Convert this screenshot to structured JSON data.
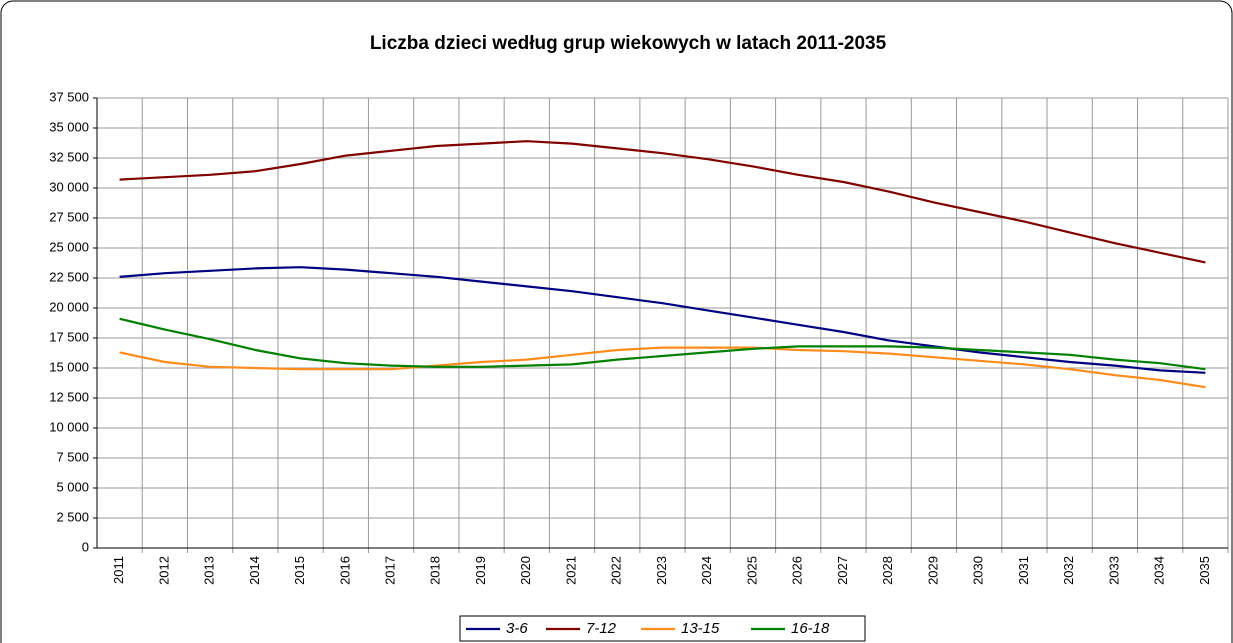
{
  "chart_data": {
    "type": "line",
    "title": "Liczba dzieci według grup wiekowych w latach 2011-2035",
    "categories": [
      "2011",
      "2012",
      "2013",
      "2014",
      "2015",
      "2016",
      "2017",
      "2018",
      "2019",
      "2020",
      "2021",
      "2022",
      "2023",
      "2024",
      "2025",
      "2026",
      "2027",
      "2028",
      "2029",
      "2030",
      "2031",
      "2032",
      "2033",
      "2034",
      "2035"
    ],
    "series": [
      {
        "name": "3-6",
        "color": "#000080",
        "values": [
          22600,
          22900,
          23100,
          23300,
          23400,
          23200,
          22900,
          22600,
          22200,
          21800,
          21400,
          20900,
          20400,
          19800,
          19200,
          18600,
          18000,
          17300,
          16800,
          16300,
          15900,
          15500,
          15200,
          14800,
          14600
        ]
      },
      {
        "name": "7-12",
        "color": "#800000",
        "values": [
          30700,
          30900,
          31100,
          31400,
          32000,
          32700,
          33100,
          33500,
          33700,
          33900,
          33700,
          33300,
          32900,
          32400,
          31800,
          31100,
          30500,
          29700,
          28800,
          28000,
          27200,
          26300,
          25400,
          24600,
          23800
        ]
      },
      {
        "name": "13-15",
        "color": "#ff8c1a",
        "values": [
          16300,
          15500,
          15100,
          15000,
          14900,
          14900,
          14900,
          15200,
          15500,
          15700,
          16100,
          16500,
          16700,
          16700,
          16700,
          16500,
          16400,
          16200,
          15900,
          15600,
          15300,
          14900,
          14400,
          14000,
          13400
        ]
      },
      {
        "name": "16-18",
        "color": "#008000",
        "values": [
          19100,
          18200,
          17400,
          16500,
          15800,
          15400,
          15200,
          15100,
          15100,
          15200,
          15300,
          15700,
          16000,
          16300,
          16600,
          16800,
          16800,
          16800,
          16700,
          16500,
          16300,
          16100,
          15700,
          15400,
          14900
        ]
      }
    ],
    "ylim": [
      0,
      37500
    ],
    "yticks": [
      0,
      {
        "value": 2500,
        "label": "2 500"
      },
      {
        "value": 5000,
        "label": "5 000"
      },
      {
        "value": 7500,
        "label": "7 500"
      },
      {
        "value": 10000,
        "label": "10 000"
      },
      {
        "value": 12500,
        "label": "12 500"
      },
      {
        "value": 15000,
        "label": "15 000"
      },
      {
        "value": 17500,
        "label": "17 500"
      },
      {
        "value": 20000,
        "label": "20 000"
      },
      {
        "value": 22500,
        "label": "22 500"
      },
      {
        "value": 25000,
        "label": "25 000"
      },
      {
        "value": 27500,
        "label": "27 500"
      },
      {
        "value": 30000,
        "label": "30 000"
      },
      {
        "value": 32500,
        "label": "32 500"
      },
      {
        "value": 35000,
        "label": "35 000"
      },
      {
        "value": 37500,
        "label": "37 500"
      }
    ],
    "grid": true,
    "legend": "bottom"
  }
}
